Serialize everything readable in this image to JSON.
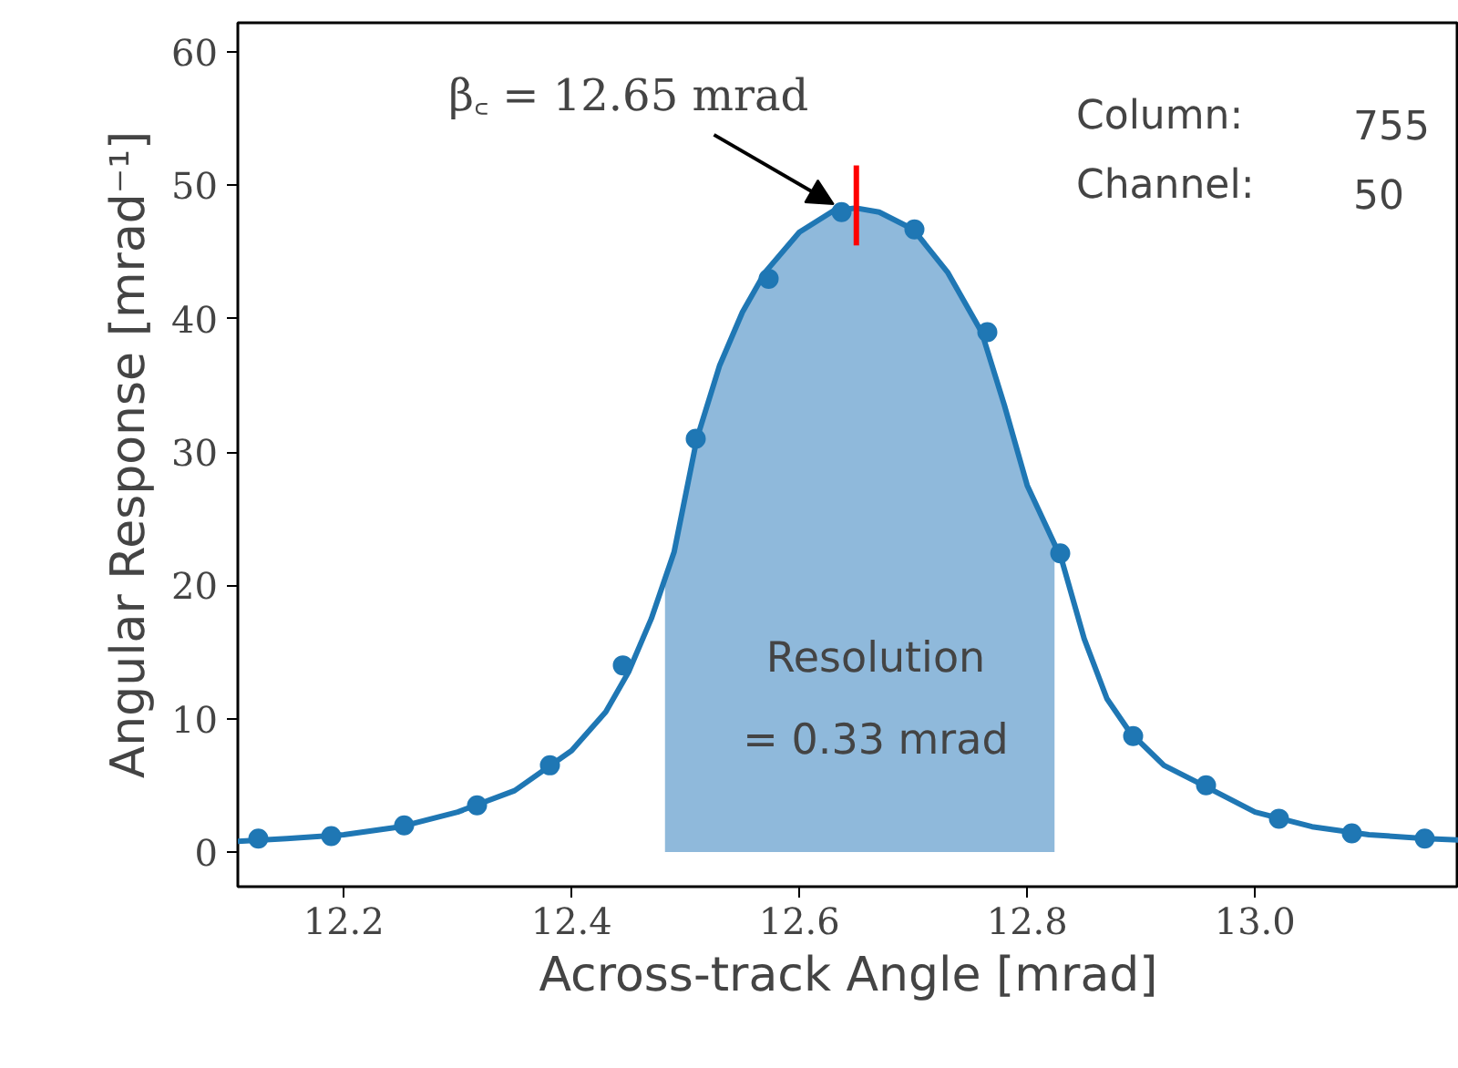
{
  "chart_data": {
    "type": "line",
    "xlabel": "Across-track Angle [mrad]",
    "ylabel": "Angular Response [mrad⁻¹]",
    "xlim": [
      12.107,
      13.179
    ],
    "ylim": [
      -2.6,
      62.2
    ],
    "xticks": [
      12.2,
      12.4,
      12.6,
      12.8,
      {
        "value": 13.0,
        "label": "13.0"
      }
    ],
    "yticks": [
      0,
      10,
      20,
      30,
      40,
      50,
      60
    ],
    "grid": false,
    "series": [
      {
        "type": "area",
        "color": "#8fb9db",
        "x": [
          12.482,
          12.49,
          12.51,
          12.53,
          12.55,
          12.57,
          12.6,
          12.63,
          12.65,
          12.67,
          12.7,
          12.73,
          12.76,
          12.78,
          12.8,
          12.824
        ],
        "values": [
          20.5,
          22.5,
          31,
          36.5,
          40.5,
          43.5,
          46.5,
          48.1,
          48.3,
          48,
          46.7,
          43.5,
          39,
          33.5,
          27.5,
          23
        ]
      },
      {
        "color": "#1f77b4",
        "x": [
          12.107,
          12.15,
          12.2,
          12.25,
          12.3,
          12.35,
          12.4,
          12.43,
          12.45,
          12.47,
          12.49,
          12.51,
          12.53,
          12.55,
          12.57,
          12.6,
          12.63,
          12.65,
          12.67,
          12.7,
          12.73,
          12.76,
          12.78,
          12.8,
          12.83,
          12.85,
          12.87,
          12.89,
          12.92,
          12.95,
          13.0,
          13.05,
          13.1,
          13.15,
          13.179
        ],
        "values": [
          0.8,
          1.0,
          1.3,
          1.9,
          3.0,
          4.6,
          7.6,
          10.5,
          13.5,
          17.5,
          22.5,
          31,
          36.5,
          40.5,
          43.5,
          46.5,
          48.1,
          48.3,
          48,
          46.7,
          43.5,
          39,
          33.5,
          27.5,
          22,
          16,
          11.5,
          9,
          6.5,
          5.2,
          3.0,
          1.9,
          1.3,
          1.0,
          0.9
        ]
      },
      {
        "type": "scatter",
        "color": "#1f77b4",
        "marker": "circle",
        "x": [
          12.125,
          12.189,
          12.253,
          12.317,
          12.381,
          12.445,
          12.509,
          12.573,
          12.637,
          12.701,
          12.765,
          12.829,
          12.893,
          12.957,
          13.021,
          13.085,
          13.149
        ],
        "values": [
          1.0,
          1.2,
          2.0,
          3.5,
          6.5,
          14,
          31,
          43,
          48,
          46.7,
          39,
          22.4,
          8.7,
          5.0,
          2.5,
          1.4,
          1.0
        ]
      },
      {
        "type": "line",
        "color": "#ff0000",
        "x": [
          12.65,
          12.65
        ],
        "values": [
          45.5,
          51.5
        ]
      }
    ],
    "annotations": [
      {
        "text": "β꜀ = 12.65 mrad",
        "x": 12.635,
        "y": 48.3
      },
      "Column: 755",
      "Channel: 50",
      "Resolution\n= 0.33 mrad"
    ]
  }
}
